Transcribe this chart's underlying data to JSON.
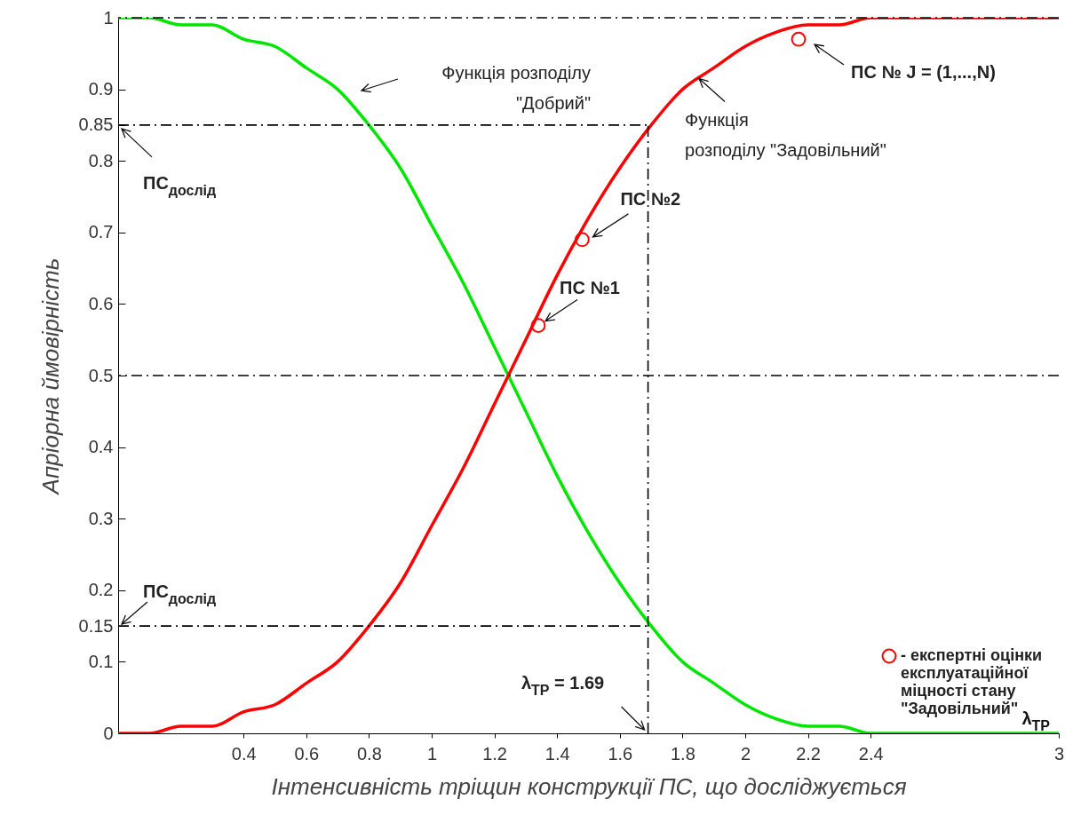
{
  "chart_data": {
    "type": "line",
    "xlabel": "Інтенсивність тріщин конструкції ПС, що досліджується",
    "ylabel": "Апріорна ймовірність",
    "x": [
      0,
      0.1,
      0.2,
      0.3,
      0.4,
      0.5,
      0.6,
      0.7,
      0.8,
      0.9,
      1,
      1.1,
      1.2,
      1.3,
      1.4,
      1.5,
      1.6,
      1.7,
      1.8,
      1.9,
      2,
      2.1,
      2.2,
      2.3,
      2.4,
      2.5,
      2.6,
      2.7,
      2.8,
      2.9,
      3
    ],
    "series": [
      {
        "color": "#00e600",
        "values": [
          1,
          1,
          0.99,
          0.99,
          0.97,
          0.96,
          0.93,
          0.9,
          0.85,
          0.79,
          0.71,
          0.63,
          0.54,
          0.45,
          0.36,
          0.28,
          0.21,
          0.15,
          0.1,
          0.07,
          0.04,
          0.02,
          0.01,
          0.01,
          0,
          0,
          0,
          0,
          0,
          0,
          0
        ]
      },
      {
        "color": "#ff0000",
        "values": [
          0,
          0,
          0.01,
          0.01,
          0.03,
          0.04,
          0.07,
          0.1,
          0.15,
          0.21,
          0.29,
          0.37,
          0.46,
          0.55,
          0.64,
          0.72,
          0.79,
          0.85,
          0.9,
          0.93,
          0.96,
          0.98,
          0.99,
          0.99,
          1,
          1,
          1,
          1,
          1,
          1,
          1
        ]
      },
      {
        "type": "scatter",
        "name": "- експертні оцінки\nексплуатаційної\nміцності стану\n\"Задовільний\"",
        "color": "#ff0000",
        "marker": "circle",
        "x": [
          1.34,
          1.48,
          2.17
        ],
        "values": [
          0.57,
          0.69,
          0.97
        ]
      },
      {
        "color": "#000000",
        "line_style": "dashed",
        "x": [
          0,
          1.69
        ],
        "values": [
          0.85,
          0.85
        ]
      },
      {
        "color": "#000000",
        "line_style": "dashed",
        "x": [
          0,
          1.69
        ],
        "values": [
          0.15,
          0.15
        ]
      },
      {
        "color": "#000000",
        "line_style": "dashed",
        "x": [
          1.69,
          1.69
        ],
        "values": [
          0,
          0.85
        ]
      }
    ],
    "ref_lines": [
      {
        "axis": "y",
        "value": 1,
        "color": "#000000",
        "line_style": "dashed"
      },
      {
        "axis": "y",
        "value": 0.5,
        "color": "#000000",
        "line_style": "dashed"
      }
    ],
    "annotations": [
      "Функція розподілу\n\"Добрий\"",
      {
        "text": "Функція\nрозподілу \"Задовільний\"",
        "x": 1.85,
        "y": 0.92
      },
      "ПС № J = (1,...,N)",
      {
        "text": "ПС №2",
        "x": 1.48,
        "y": 0.69
      },
      {
        "text": "ПС №1",
        "x": 1.34,
        "y": 0.57
      },
      {
        "text": "ПС$_{дослід}$",
        "x": 0,
        "y": 0.85
      },
      {
        "text": "ПС$_{дослід}$",
        "x": 0,
        "y": 0.15
      },
      {
        "text": "λ$_{TP}$ = 1.69",
        "x": 1.69,
        "y": 0
      },
      "λ$_{TP}$"
    ],
    "xlim": [
      0,
      3
    ],
    "xticks": [
      0.4,
      0.6,
      0.8,
      1,
      1.2,
      1.4,
      1.6,
      1.8,
      2,
      2.2,
      2.4,
      3
    ],
    "ylim": [
      0,
      1
    ],
    "yticks": [
      0,
      0.1,
      0.15,
      0.2,
      0.3,
      0.4,
      0.5,
      0.6,
      0.7,
      0.8,
      0.85,
      0.9,
      1
    ],
    "legend": "bottom right"
  }
}
